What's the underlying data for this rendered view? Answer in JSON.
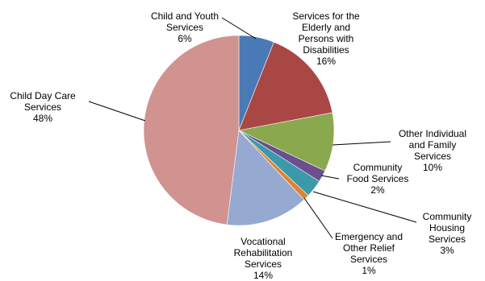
{
  "chart_data": {
    "type": "pie",
    "title": "",
    "unit": "%",
    "slices": [
      {
        "label": "Child and Youth Services",
        "value": 6,
        "pct_text": "6%",
        "color": "#4a7ab5"
      },
      {
        "label": "Services for the Elderly and Persons with Disabilities",
        "value": 16,
        "pct_text": "16%",
        "color": "#a94745"
      },
      {
        "label": "Other Individual and Family Services",
        "value": 10,
        "pct_text": "10%",
        "color": "#8aa94e"
      },
      {
        "label": "Community Food Services",
        "value": 2,
        "pct_text": "2%",
        "color": "#6b4f8f"
      },
      {
        "label": "Community Housing Services",
        "value": 3,
        "pct_text": "3%",
        "color": "#3b9aaa"
      },
      {
        "label": "Emergency and Other Relief Services",
        "value": 1,
        "pct_text": "1%",
        "color": "#e0822f"
      },
      {
        "label": "Vocational Rehabilitation Services",
        "value": 14,
        "pct_text": "14%",
        "color": "#95a9d1"
      },
      {
        "label": "Child Day Care Services",
        "value": 48,
        "pct_text": "48%",
        "color": "#d09390"
      }
    ],
    "label_lines": [
      [
        "Child and Youth",
        "Services",
        "6%"
      ],
      [
        "Services for the",
        "Elderly and",
        "Persons with",
        "Disabilities",
        "16%"
      ],
      [
        "Other Individual",
        "and Family",
        "Services",
        "10%"
      ],
      [
        "Community",
        "Food Services",
        "2%"
      ],
      [
        "Community",
        "Housing",
        "Services",
        "3%"
      ],
      [
        "Emergency and",
        "Other Relief",
        "Services",
        "1%"
      ],
      [
        "Vocational",
        "Rehabilitation",
        "Services",
        "14%"
      ],
      [
        "Child Day Care",
        "Services",
        "48%"
      ]
    ]
  }
}
